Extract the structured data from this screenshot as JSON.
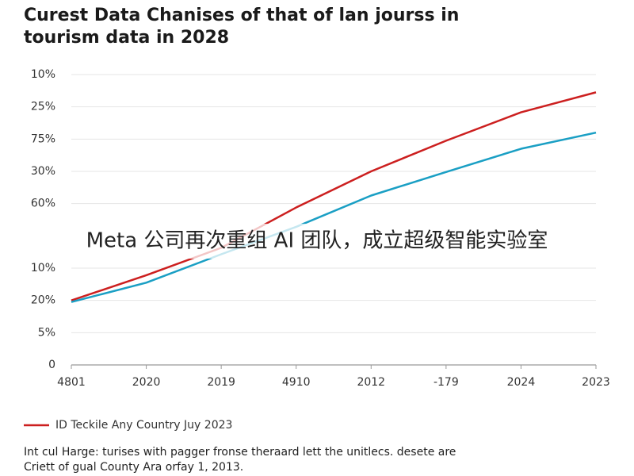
{
  "chart_data": {
    "type": "line",
    "title": [
      "Curest Data Chanises of that of lan jourss in",
      "tourism data in 2028"
    ],
    "categories": [
      "4801",
      "2020",
      "2019",
      "4910",
      "2012",
      "-179",
      "2024",
      "2023"
    ],
    "series": [
      {
        "name": "ID Teckile Any Country Juy 2023",
        "color": "#cc1f1f",
        "values": [
          2.0,
          2.78,
          3.63,
          4.88,
          6.0,
          6.95,
          7.83,
          8.45
        ]
      },
      {
        "color": "#1a9fc4",
        "values": [
          1.95,
          2.55,
          3.43,
          4.28,
          5.25,
          5.98,
          6.7,
          7.2
        ]
      }
    ],
    "ylim": [
      0,
      9
    ],
    "yticks": [
      0,
      {
        "value": 1,
        "label": "5%"
      },
      {
        "value": 2,
        "label": "20%"
      },
      {
        "value": 3,
        "label": "10%"
      },
      {
        "value": 5,
        "label": "60%"
      },
      {
        "value": 6,
        "label": "30%"
      },
      {
        "value": 7,
        "label": "75%"
      },
      {
        "value": 8,
        "label": "25%"
      },
      {
        "value": 9,
        "label": "10%"
      }
    ],
    "grid": true,
    "annotation": "Meta 公司再次重组 AI 团队，成立超级智能实验室",
    "footnote": [
      "Int cul Harge: turises with pagger fronse theraard lett the unitlecs. desete are",
      "Criett of gual County Ara orfay 1, 2013."
    ]
  }
}
